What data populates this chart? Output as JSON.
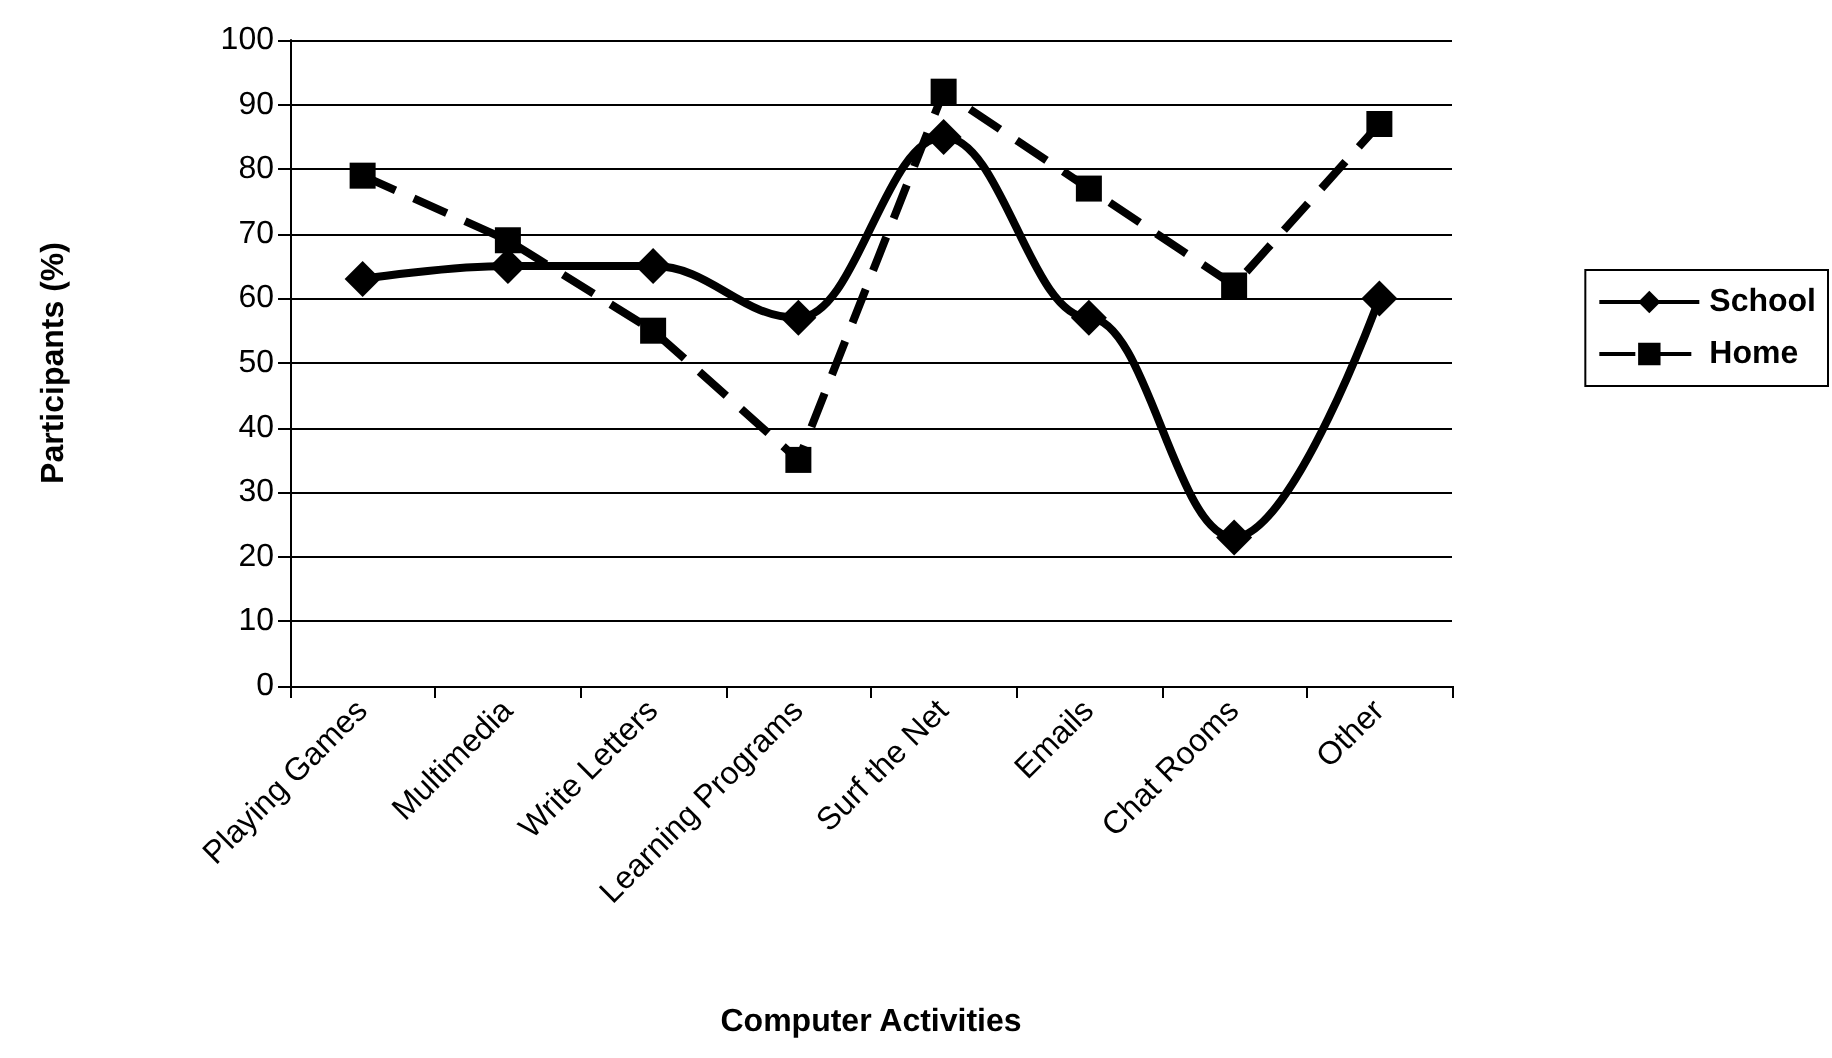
{
  "chart_data": {
    "type": "line",
    "xlabel": "Computer Activities",
    "ylabel": "Participants (%)",
    "categories": [
      "Playing Games",
      "Multimedia",
      "Write Letters",
      "Learning Programs",
      "Surf the Net",
      "Emails",
      "Chat Rooms",
      "Other"
    ],
    "series": [
      {
        "name": "School",
        "color": "#000000",
        "marker": "diamond",
        "line_style": "solid",
        "values": [
          63,
          65,
          65,
          57,
          85,
          57,
          23,
          60
        ]
      },
      {
        "name": "Home",
        "color": "#000000",
        "marker": "square",
        "line_style": "dashed",
        "values": [
          79,
          69,
          55,
          35,
          92,
          77,
          62,
          87
        ]
      }
    ],
    "ylim": [
      0,
      100
    ],
    "yticks": [
      0,
      10,
      20,
      30,
      40,
      50,
      60,
      70,
      80,
      90,
      100
    ],
    "grid": "y",
    "legend": "right"
  }
}
